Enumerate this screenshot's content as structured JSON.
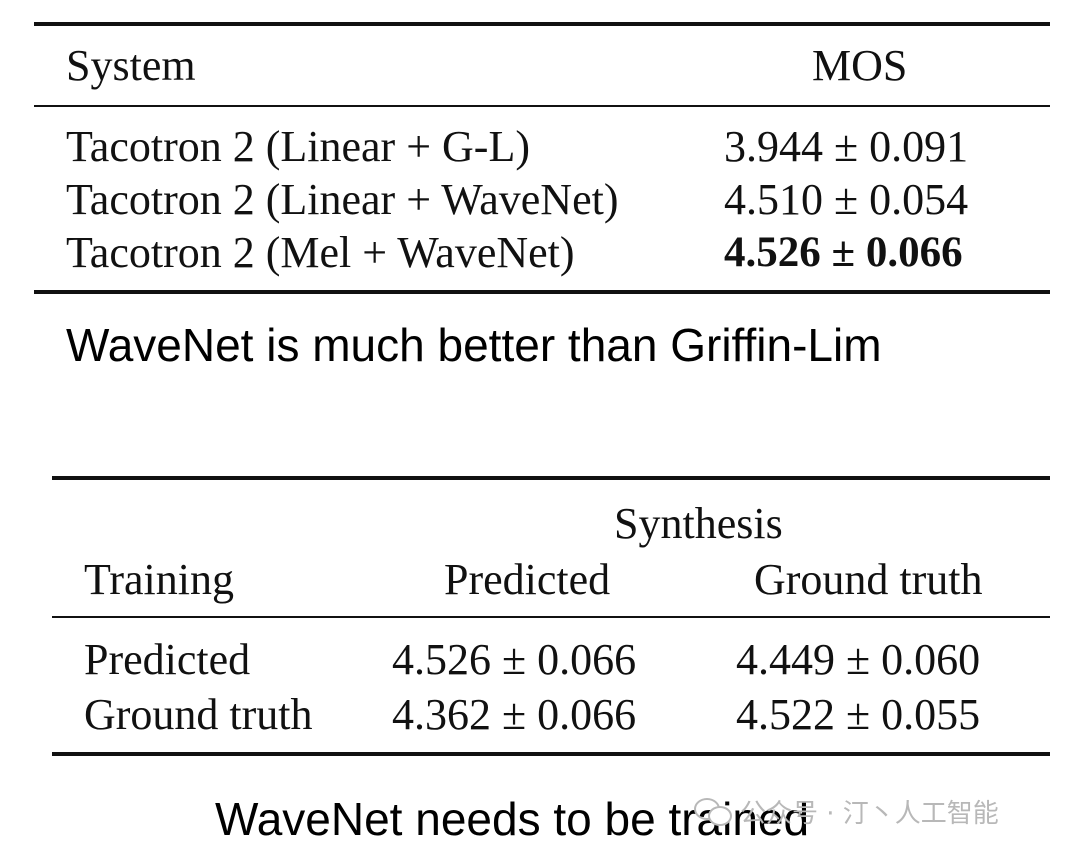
{
  "table1": {
    "headers": {
      "system": "System",
      "mos": "MOS"
    },
    "rows": [
      {
        "system": "Tacotron 2 (Linear + G-L)",
        "mos": "3.944 ± 0.091"
      },
      {
        "system": "Tacotron 2 (Linear + WaveNet)",
        "mos": "4.510 ± 0.054"
      },
      {
        "system": "Tacotron 2 (Mel + WaveNet)",
        "mos": "4.526 ± 0.066"
      }
    ]
  },
  "caption1": "WaveNet is much better than Griffin-Lim",
  "table2": {
    "headers": {
      "synthesis": "Synthesis",
      "training": "Training",
      "predicted": "Predicted",
      "ground_truth": "Ground truth"
    },
    "rows": [
      {
        "training": "Predicted",
        "predicted": "4.526 ± 0.066",
        "ground_truth": "4.449 ± 0.060"
      },
      {
        "training": "Ground truth",
        "predicted": "4.362 ± 0.066",
        "ground_truth": "4.522 ± 0.055"
      }
    ]
  },
  "caption2": "WaveNet needs to be trained",
  "watermark": {
    "text": "公众号 · 汀丶人工智能",
    "icon": "wechat-icon"
  }
}
